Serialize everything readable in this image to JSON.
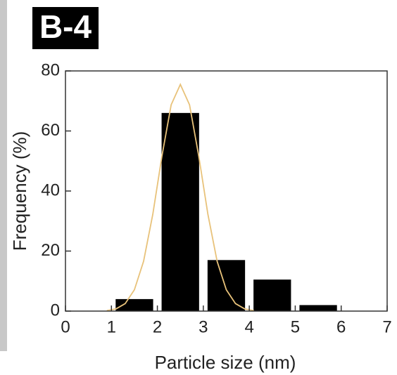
{
  "panel_label": "B-4",
  "chart_data": {
    "type": "histogram",
    "xlabel": "Particle size (nm)",
    "ylabel": "Frequency (%)",
    "bins": [
      1,
      2,
      3,
      4,
      5,
      6
    ],
    "counts": [
      4,
      66,
      17,
      10.5,
      2
    ],
    "color": "#000000",
    "xlim": [
      0,
      7
    ],
    "ylim": [
      0,
      80
    ],
    "xticks": [
      0,
      1,
      2,
      3,
      4,
      5,
      6,
      7
    ],
    "yticks": [
      0,
      20,
      40,
      60,
      80
    ],
    "fit_curve": {
      "color": "#e8c27a",
      "x": [
        0.9,
        1.1,
        1.3,
        1.5,
        1.7,
        1.9,
        2.1,
        2.3,
        2.5,
        2.7,
        2.9,
        3.1,
        3.3,
        3.5,
        3.7,
        3.9,
        4.1
      ],
      "values": [
        0.18,
        0.74,
        2.5,
        7.1,
        16.6,
        32.2,
        51.7,
        68.7,
        75.5,
        68.7,
        51.7,
        32.2,
        16.6,
        7.1,
        2.5,
        0.74,
        0.18
      ]
    }
  }
}
